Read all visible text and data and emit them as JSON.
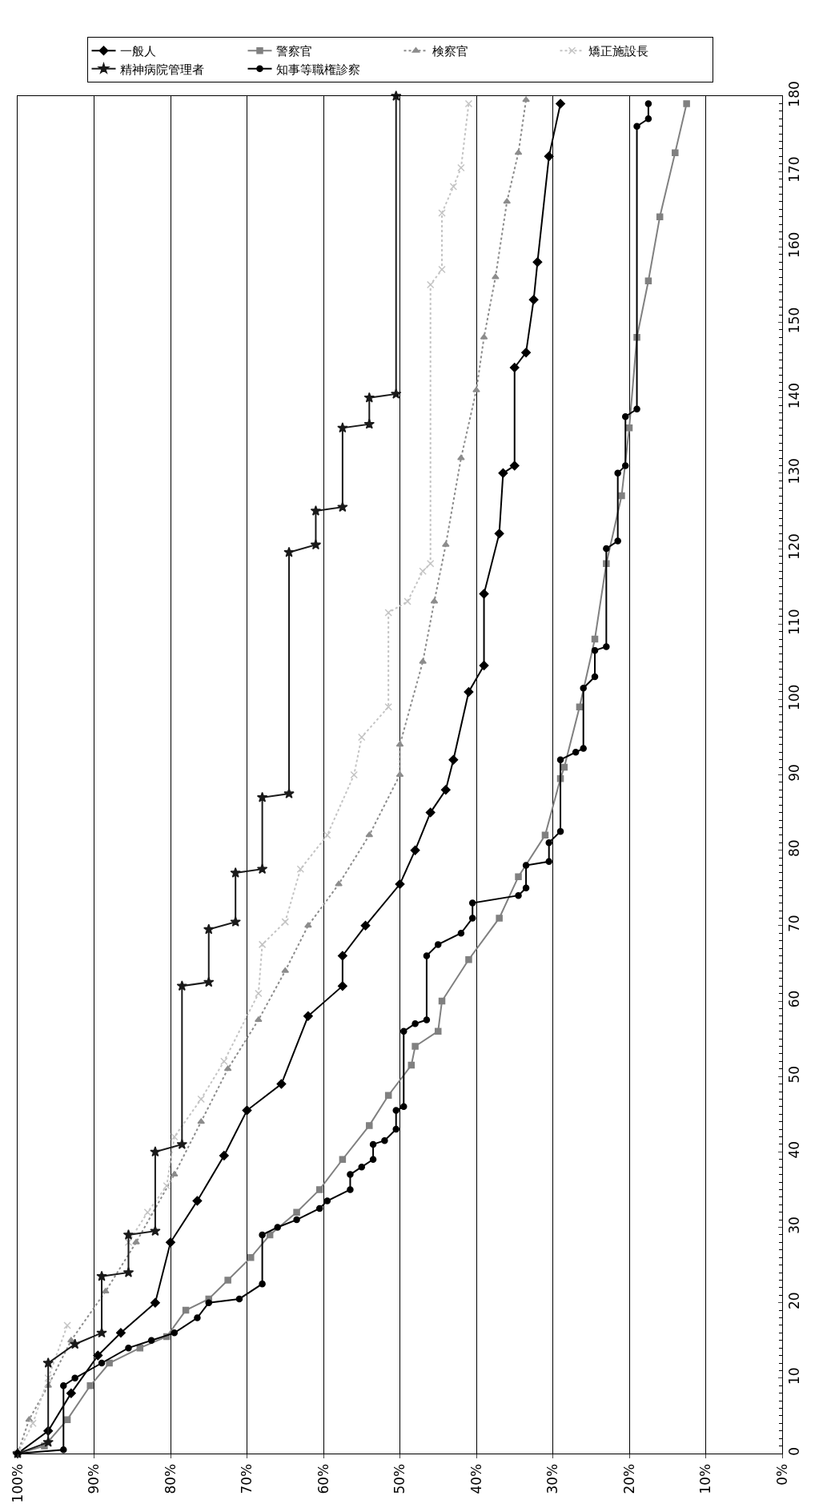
{
  "chart_data": {
    "type": "line",
    "xlim": [
      100,
      0
    ],
    "xticks": [
      {
        "value": 100,
        "label": "100%"
      },
      {
        "value": 90,
        "label": "90%"
      },
      {
        "value": 80,
        "label": "80%"
      },
      {
        "value": 70,
        "label": "70%"
      },
      {
        "value": 60,
        "label": "60%"
      },
      {
        "value": 50,
        "label": "50%"
      },
      {
        "value": 40,
        "label": "40%"
      },
      {
        "value": 30,
        "label": "30%"
      },
      {
        "value": 20,
        "label": "20%"
      },
      {
        "value": 10,
        "label": "10%"
      },
      {
        "value": 0,
        "label": "0%"
      }
    ],
    "ylim": [
      0,
      180
    ],
    "yticks": [
      0,
      10,
      20,
      30,
      40,
      50,
      60,
      70,
      80,
      90,
      100,
      110,
      120,
      130,
      140,
      150,
      160,
      170,
      180
    ],
    "grid": "x",
    "legend": "top",
    "series": [
      {
        "name": "一般人",
        "color": "#000000",
        "marker": "diamond",
        "line_style": "solid",
        "x": [
          100,
          96,
          93,
          89.5,
          86.5,
          82,
          80,
          76.5,
          73,
          70,
          65.5,
          62,
          57.5,
          57.5,
          54.5,
          50,
          48,
          46,
          44,
          43,
          41,
          39,
          39,
          37,
          36.5,
          35,
          35,
          33.5,
          32.5,
          32,
          30.5,
          29
        ],
        "values": [
          0,
          3,
          8,
          13,
          16,
          20,
          28,
          33.5,
          39.5,
          45.5,
          49,
          58,
          62,
          66,
          70,
          75.5,
          80,
          85,
          88,
          92,
          101,
          104.5,
          114,
          122,
          130,
          131,
          144,
          146,
          153,
          158,
          172,
          179
        ]
      },
      {
        "name": "警察官",
        "color": "#808080",
        "marker": "square",
        "line_style": "solid",
        "x": [
          100,
          96.5,
          93.5,
          90.5,
          88,
          84,
          80.5,
          78,
          75,
          72.5,
          69.5,
          67,
          63.5,
          60.5,
          57.5,
          54,
          51.5,
          48.5,
          48,
          45,
          44.5,
          41,
          37,
          34.5,
          31,
          29,
          28.5,
          26.5,
          24.5,
          23,
          21,
          20,
          19,
          17.5,
          16,
          14,
          12.5
        ],
        "values": [
          0,
          1,
          4.5,
          9,
          12,
          14,
          15.5,
          19,
          20.5,
          23,
          26,
          29,
          32,
          35,
          39,
          43.5,
          47.5,
          51.5,
          54,
          56,
          60,
          65.5,
          71,
          76.5,
          82,
          89.5,
          91,
          99,
          108,
          118,
          127,
          136,
          148,
          155.5,
          164,
          172.5,
          179
        ]
      },
      {
        "name": "検察官",
        "color": "#8c8c8c",
        "marker": "triangle",
        "line_style": "dotted",
        "x": [
          100,
          98.5,
          96,
          93,
          88.5,
          84.5,
          79.5,
          76,
          72.5,
          68.5,
          65,
          62,
          58,
          54,
          50,
          50,
          47,
          45.5,
          44,
          42,
          40,
          39,
          37.5,
          36,
          34.5,
          33.5
        ],
        "values": [
          0,
          4.5,
          9,
          15,
          21.5,
          28,
          37,
          44,
          51,
          57.5,
          64,
          70,
          75.5,
          82,
          90,
          94,
          105,
          113,
          120.5,
          132,
          141,
          148,
          156,
          166,
          172.5,
          179.5
        ]
      },
      {
        "name": "矯正施設長",
        "color": "#c4c4c4",
        "marker": "cross",
        "line_style": "dotted",
        "x": [
          100,
          98,
          96,
          93.5,
          89.5,
          85.5,
          83,
          80.5,
          79.5,
          76,
          73,
          68.5,
          68,
          65,
          63,
          59.5,
          56,
          55,
          51.5,
          51.5,
          49,
          47,
          46,
          46,
          44.5,
          44.5,
          43,
          42,
          41
        ],
        "values": [
          0,
          4,
          10,
          17,
          null,
          28,
          32,
          35.5,
          42,
          47,
          52,
          61,
          67.5,
          70.5,
          77.5,
          82,
          90,
          95,
          99,
          111.5,
          113,
          117,
          118,
          155,
          157,
          164.5,
          168,
          170.5,
          179
        ]
      },
      {
        "name": "精神病院管理者",
        "color": "#1a1a1a",
        "marker": "star",
        "line_style": "solid",
        "x": [
          100,
          96,
          96,
          92.5,
          89,
          89,
          85.5,
          85.5,
          82,
          82,
          78.5,
          78.5,
          75,
          75,
          71.5,
          71.5,
          68,
          68,
          64.5,
          64.5,
          61,
          61,
          57.5,
          57.5,
          54,
          54,
          50.5,
          50.5
        ],
        "values": [
          0,
          1.5,
          12,
          14.5,
          16,
          23.5,
          24,
          29,
          29.5,
          40,
          41,
          62,
          62.5,
          69.5,
          70.5,
          77,
          77.5,
          87,
          87.5,
          119.5,
          120.5,
          125,
          125.5,
          136,
          136.5,
          140,
          140.5,
          180
        ]
      },
      {
        "name": "知事等職権診察",
        "color": "#000000",
        "marker": "circle",
        "line_style": "solid",
        "x": [
          100,
          94,
          94,
          92.5,
          89,
          85.5,
          82.5,
          79.5,
          76.5,
          75,
          71,
          68,
          68,
          66,
          63.5,
          60.5,
          59.5,
          56.5,
          56.5,
          55,
          53.5,
          53.5,
          52,
          50.5,
          50.5,
          49.5,
          49.5,
          48,
          46.5,
          46.5,
          45,
          42,
          40.5,
          40.5,
          34.5,
          33.5,
          33.5,
          30.5,
          30.5,
          29,
          29,
          27,
          26,
          26,
          24.5,
          24.5,
          23,
          23,
          21.5,
          21.5,
          20.5,
          20.5,
          19,
          19,
          17.5,
          17.5
        ],
        "values": [
          0,
          0.5,
          9,
          10,
          12,
          14,
          15,
          16,
          18,
          20,
          20.5,
          22.5,
          29,
          30,
          31,
          32.5,
          33.5,
          35,
          37,
          38,
          39,
          41,
          41.5,
          43,
          45.5,
          46,
          56,
          57,
          57.5,
          66,
          67.5,
          69,
          71,
          73,
          74,
          75,
          78,
          78.5,
          81,
          82.5,
          92,
          93,
          93.5,
          101.5,
          103,
          106.5,
          107,
          120,
          121,
          130,
          131,
          137.5,
          138.5,
          176,
          177,
          179
        ]
      }
    ]
  }
}
